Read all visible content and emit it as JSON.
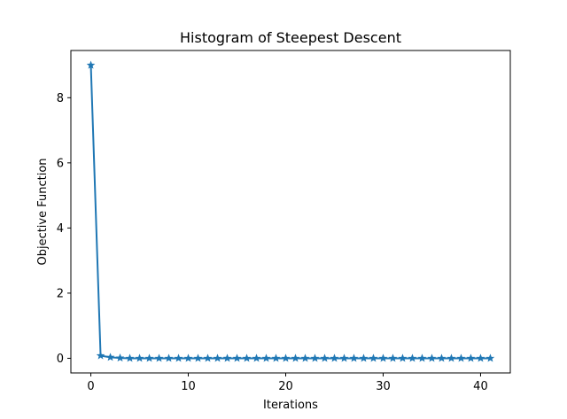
{
  "chart_data": {
    "type": "line",
    "title": "Histogram of Steepest Descent",
    "xlabel": "Iterations",
    "ylabel": "Objective Function",
    "xlim": [
      -2.05,
      43.05
    ],
    "ylim": [
      -0.45,
      9.45
    ],
    "xticks": [
      0,
      10,
      20,
      30,
      40
    ],
    "yticks": [
      0,
      2,
      4,
      6,
      8
    ],
    "grid": false,
    "marker": "star",
    "color": "#1f77b4",
    "series": [
      {
        "x": [
          0,
          1,
          2,
          3,
          4,
          5,
          6,
          7,
          8,
          9,
          10,
          11,
          12,
          13,
          14,
          15,
          16,
          17,
          18,
          19,
          20,
          21,
          22,
          23,
          24,
          25,
          26,
          27,
          28,
          29,
          30,
          31,
          32,
          33,
          34,
          35,
          36,
          37,
          38,
          39,
          40,
          41
        ],
        "values": [
          9.0,
          0.08,
          0.03,
          0.01,
          0,
          0,
          0,
          0,
          0,
          0,
          0,
          0,
          0,
          0,
          0,
          0,
          0,
          0,
          0,
          0,
          0,
          0,
          0,
          0,
          0,
          0,
          0,
          0,
          0,
          0,
          0,
          0,
          0,
          0,
          0,
          0,
          0,
          0,
          0,
          0,
          0,
          0
        ]
      }
    ]
  }
}
